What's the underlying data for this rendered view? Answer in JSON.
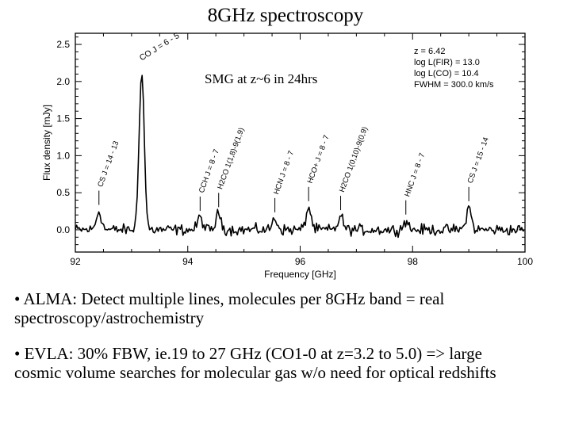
{
  "slide": {
    "title": "8GHz spectroscopy",
    "bullets": [
      {
        "marker": "•",
        "line1": "ALMA: Detect multiple lines, molecules per 8GHz band = real",
        "line2": "spectroscopy/astrochemistry"
      },
      {
        "marker": "•",
        "line1": "EVLA: 30% FBW, ie.19 to 27 GHz (CO1-0 at z=3.2 to 5.0) => large",
        "line2": "cosmic volume searches for molecular gas w/o need for optical redshifts"
      }
    ]
  },
  "chart_data": {
    "type": "line",
    "xlabel": "Frequency [GHz]",
    "ylabel": "Flux density [mJy]",
    "xlim": [
      92,
      100
    ],
    "ylim": [
      -0.3,
      2.65
    ],
    "xticks": [
      92,
      94,
      96,
      98,
      100
    ],
    "xtick_labels": [
      "92",
      "94",
      "96",
      "98",
      "100"
    ],
    "yticks": [
      0.0,
      0.5,
      1.0,
      1.5,
      2.0,
      2.5
    ],
    "ytick_labels": [
      "0.0",
      "0.5",
      "1.0",
      "1.5",
      "2.0",
      "2.5"
    ],
    "annotation": "SMG at z~6  in 24hrs",
    "parameters": [
      "z  =  6.42",
      "log L(FIR) = 13.0",
      "log L(CO) = 10.4",
      "FWHM = 300.0 km/s"
    ],
    "lines": [
      {
        "label": "CS J = 14 - 13",
        "freq": 92.42,
        "peak": 0.25
      },
      {
        "label": "CO J = 6 - 5",
        "freq": 93.18,
        "peak": 2.15
      },
      {
        "label": "CCH J = 8 - 7",
        "freq": 94.22,
        "peak": 0.17
      },
      {
        "label": "H2CO 1(1,8)-9(1,9)",
        "freq": 94.55,
        "peak": 0.22
      },
      {
        "label": "HCN J = 8 - 7",
        "freq": 95.55,
        "peak": 0.15
      },
      {
        "label": "HCO+ J = 8 - 7",
        "freq": 96.15,
        "peak": 0.3
      },
      {
        "label": "H2CO 1(0,10)-9(0,9)",
        "freq": 96.72,
        "peak": 0.18
      },
      {
        "label": "HNC J = 8 - 7",
        "freq": 97.88,
        "peak": 0.12
      },
      {
        "label": "CS J = 15 - 14",
        "freq": 99.0,
        "peak": 0.3
      }
    ],
    "noise_rms": 0.045
  }
}
